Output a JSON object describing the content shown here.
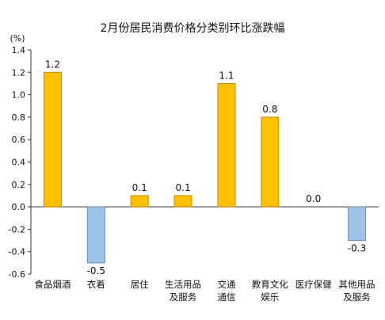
{
  "chart_data": {
    "type": "bar",
    "title": "2月份居民消费价格分类别环比涨跌幅",
    "ylabel": "(%)",
    "ylim": [
      -0.6,
      1.4
    ],
    "yticks": [
      "1.4",
      "1.2",
      "1.0",
      "0.8",
      "0.6",
      "0.4",
      "0.2",
      "0.0",
      "-0.2",
      "-0.4",
      "-0.6"
    ],
    "categories": [
      [
        "食品烟酒"
      ],
      [
        "衣着"
      ],
      [
        "居住"
      ],
      [
        "生活用品",
        "及服务"
      ],
      [
        "交通",
        "通信"
      ],
      [
        "教育文化",
        "娱乐"
      ],
      [
        "医疗保健"
      ],
      [
        "其他用品",
        "及服务"
      ]
    ],
    "values": [
      1.2,
      -0.5,
      0.1,
      0.1,
      1.1,
      0.8,
      0.0,
      -0.3
    ],
    "value_labels": [
      "1.2",
      "-0.5",
      "0.1",
      "0.1",
      "1.1",
      "0.8",
      "0.0",
      "-0.3"
    ],
    "grid": false,
    "colors": {
      "positive": "#ffc000",
      "negative": "#9dc3e6"
    }
  }
}
